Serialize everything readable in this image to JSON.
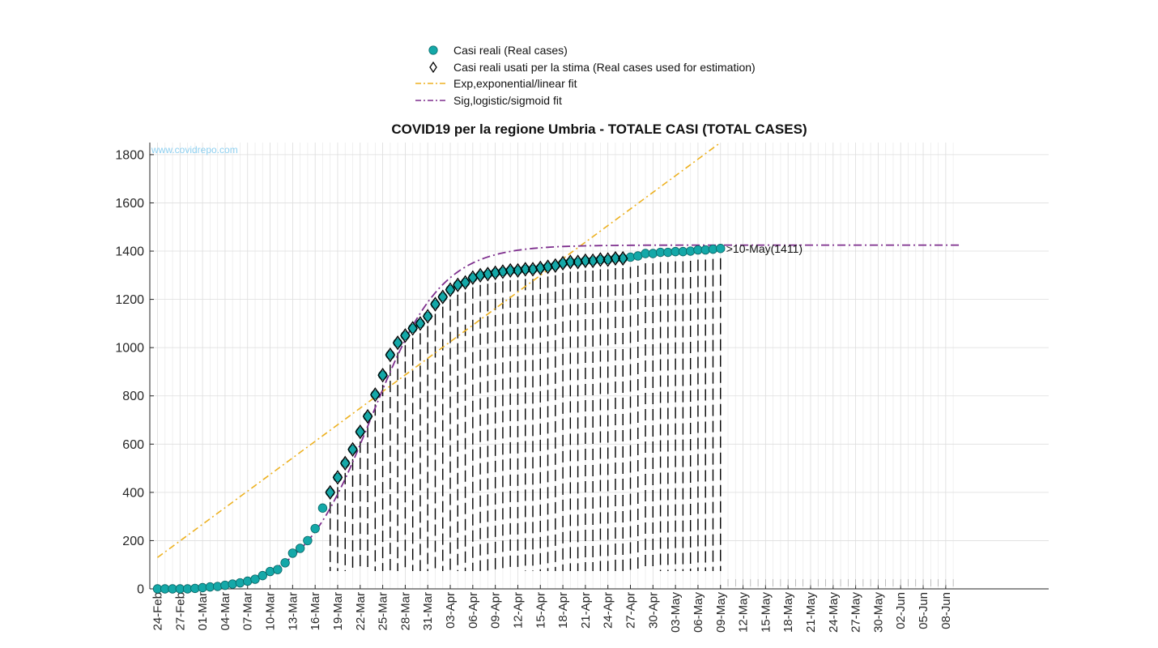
{
  "chart_data": {
    "type": "line",
    "title": "COVID19 per la regione Umbria - TOTALE CASI (TOTAL CASES)",
    "watermark": "www.covidrepo.com",
    "ylim": [
      0,
      1850
    ],
    "yticks": [
      0,
      200,
      400,
      600,
      800,
      1000,
      1200,
      1400,
      1600,
      1800
    ],
    "x_dates": [
      "24-Feb",
      "27-Feb",
      "01-Mar",
      "04-Mar",
      "07-Mar",
      "10-Mar",
      "13-Mar",
      "16-Mar",
      "19-Mar",
      "22-Mar",
      "25-Mar",
      "28-Mar",
      "31-Mar",
      "03-Apr",
      "06-Apr",
      "09-Apr",
      "12-Apr",
      "15-Apr",
      "18-Apr",
      "21-Apr",
      "24-Apr",
      "27-Apr",
      "30-Apr",
      "03-May",
      "06-May",
      "09-May",
      "12-May",
      "15-May",
      "18-May",
      "21-May",
      "24-May",
      "27-May",
      "30-May",
      "02-Jun",
      "05-Jun",
      "08-Jun"
    ],
    "grid": true,
    "legend_position": "top-center",
    "annotation": ">10-May(1411)",
    "real_cases": [
      0,
      0,
      0,
      0,
      0,
      2,
      5,
      8,
      10,
      15,
      20,
      25,
      32,
      40,
      55,
      72,
      80,
      108,
      148,
      168,
      200,
      250,
      335,
      400,
      462,
      521,
      578,
      651,
      715,
      805,
      886,
      970,
      1020,
      1050,
      1080,
      1100,
      1130,
      1180,
      1210,
      1240,
      1260,
      1270,
      1290,
      1300,
      1305,
      1310,
      1315,
      1320,
      1320,
      1325,
      1325,
      1330,
      1335,
      1340,
      1350,
      1355,
      1355,
      1360,
      1360,
      1365,
      1365,
      1370,
      1370,
      1375,
      1380,
      1390,
      1390,
      1395,
      1395,
      1398,
      1398,
      1400,
      1405,
      1405,
      1408,
      1411
    ],
    "estimation_start_index": 23,
    "estimation_end_index": 62,
    "exp_fit": {
      "start": [
        0,
        130
      ],
      "end": [
        75,
        1850
      ]
    },
    "sig_fit": {
      "L": 1425,
      "k": 0.215,
      "x0": 28.5
    },
    "sig_fit_extent": 107,
    "series": [
      {
        "name": "Casi reali (Real cases)",
        "color": "#14a8a8",
        "marker": "circle"
      },
      {
        "name": "Casi reali usati per la stima (Real cases used for estimation)",
        "color": "#000000",
        "marker": "diamond"
      },
      {
        "name": "Exp,exponential/linear fit",
        "color": "#edb120",
        "style": "dash-dot"
      },
      {
        "name": "Sig,logistic/sigmoid fit",
        "color": "#7e2f8e",
        "style": "dash-dot"
      }
    ]
  }
}
